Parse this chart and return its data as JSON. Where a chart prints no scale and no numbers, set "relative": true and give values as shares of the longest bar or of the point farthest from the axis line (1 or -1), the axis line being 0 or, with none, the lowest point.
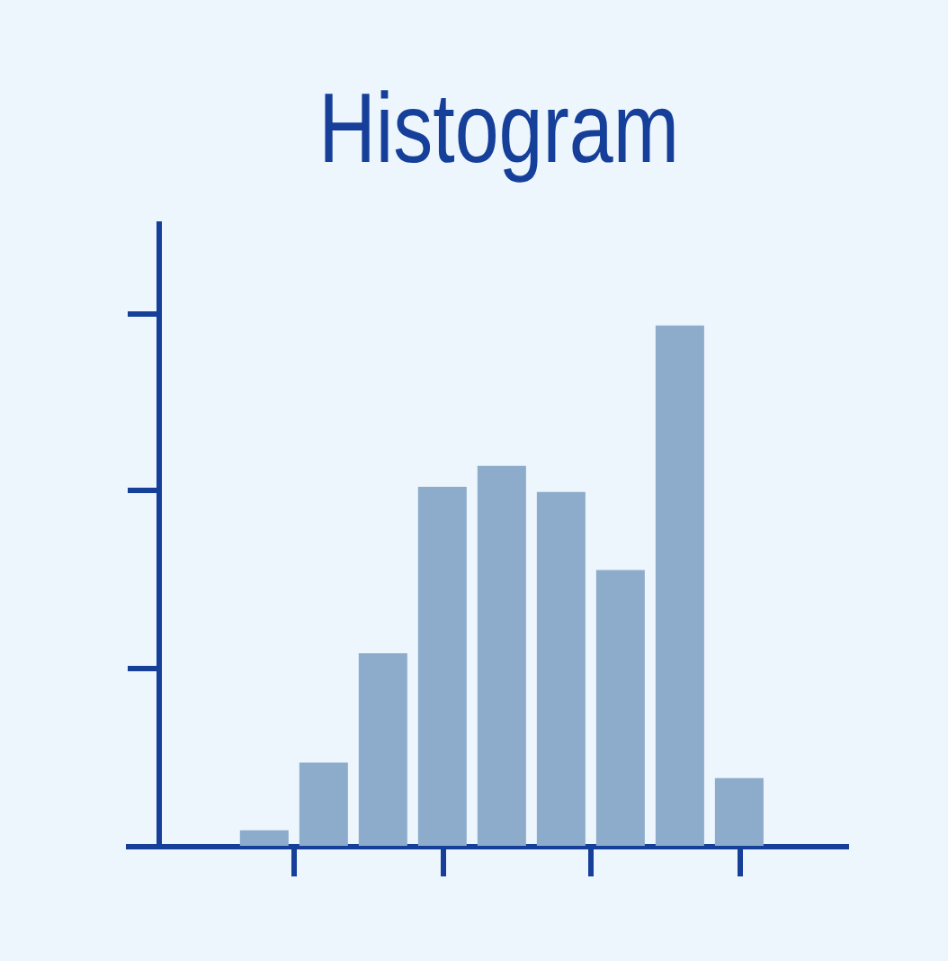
{
  "chart_data": {
    "type": "bar",
    "title": "Histogram",
    "categories": [
      null,
      null,
      null,
      null,
      null,
      null,
      null,
      null,
      null
    ],
    "values": [
      0.03,
      0.16,
      0.37,
      0.69,
      0.73,
      0.68,
      0.53,
      1,
      0.13
    ],
    "color": "#8dabcb",
    "relative": true
  }
}
